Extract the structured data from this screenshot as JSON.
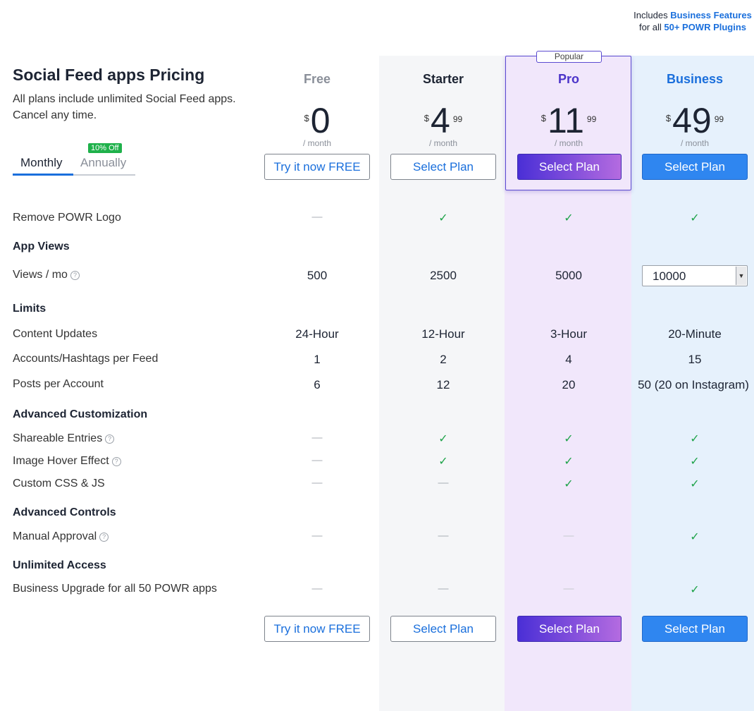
{
  "page": {
    "title": "Social Feed apps Pricing",
    "subtitle": "All plans include unlimited Social Feed apps. Cancel any time."
  },
  "billing_toggle": {
    "monthly": "Monthly",
    "annually": "Annually",
    "discount_badge": "10% Off"
  },
  "business_note": {
    "pre": "Includes ",
    "highlight1": "Business Features",
    "mid": " for all ",
    "highlight2": "50+ POWR Plugins"
  },
  "popular_tag": "Popular",
  "currency": "$",
  "per_period": "/ month",
  "plans": [
    {
      "name": "Free",
      "price": "0",
      "cents": "",
      "button": "Try it now FREE",
      "name_color": "#8a8f99"
    },
    {
      "name": "Starter",
      "price": "4",
      "cents": "99",
      "button": "Select Plan",
      "name_color": "#1d2433"
    },
    {
      "name": "Pro",
      "price": "11",
      "cents": "99",
      "button": "Select Plan",
      "name_color": "#4b33c9"
    },
    {
      "name": "Business",
      "price": "49",
      "cents": "99",
      "button": "Select Plan",
      "name_color": "#1a6fdc"
    }
  ],
  "features": {
    "remove_logo": {
      "label": "Remove POWR Logo",
      "values": [
        "—",
        "✓",
        "✓",
        "✓"
      ]
    },
    "app_views_section": "App Views",
    "views": {
      "label": "Views / mo",
      "values": [
        "500",
        "2500",
        "5000"
      ],
      "business_select": "10000"
    },
    "limits_section": "Limits",
    "content_updates": {
      "label": "Content Updates",
      "values": [
        "24-Hour",
        "12-Hour",
        "3-Hour",
        "20-Minute"
      ]
    },
    "accounts": {
      "label": "Accounts/Hashtags per Feed",
      "values": [
        "1",
        "2",
        "4",
        "15"
      ]
    },
    "posts": {
      "label": "Posts per Account",
      "values": [
        "6",
        "12",
        "20",
        "50 (20 on Instagram)"
      ]
    },
    "advanced_customization_section": "Advanced Customization",
    "shareable": {
      "label": "Shareable Entries",
      "values": [
        "—",
        "✓",
        "✓",
        "✓"
      ]
    },
    "hover": {
      "label": "Image Hover Effect",
      "values": [
        "—",
        "✓",
        "✓",
        "✓"
      ]
    },
    "css": {
      "label": "Custom CSS & JS",
      "values": [
        "—",
        "—",
        "✓",
        "✓"
      ]
    },
    "advanced_controls_section": "Advanced Controls",
    "manual_approval": {
      "label": "Manual Approval",
      "values": [
        "—",
        "—",
        "—",
        "✓"
      ]
    },
    "unlimited_section": "Unlimited Access",
    "business_upgrade": {
      "label": "Business Upgrade for all 50 POWR apps",
      "values": [
        "—",
        "—",
        "—",
        "✓"
      ]
    }
  },
  "help_icon_glyph": "?"
}
